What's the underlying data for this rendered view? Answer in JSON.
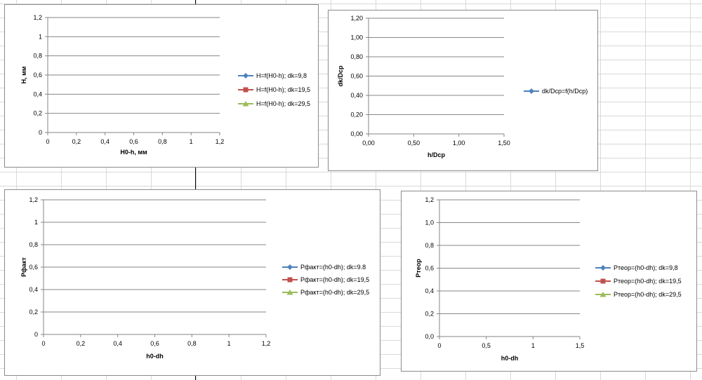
{
  "charts": [
    {
      "chart_data": {
        "type": "line",
        "xlabel": "H0-h, мм",
        "ylabel": "H, мм",
        "xlim": [
          0,
          1.2
        ],
        "ylim": [
          0,
          1.2
        ],
        "x_ticks": [
          "0",
          "0,2",
          "0,4",
          "0,6",
          "0,8",
          "1",
          "1,2"
        ],
        "y_ticks": [
          "0",
          "0,2",
          "0,4",
          "0,6",
          "0,8",
          "1",
          "1,2"
        ],
        "grid": "horizontal",
        "legend_position": "right",
        "series": [
          {
            "name": "H=f(H0-h); dk=9,8",
            "color": "#4f81bd",
            "marker": "diamond",
            "values": []
          },
          {
            "name": "H=f(H0-h); dk=19,5",
            "color": "#c0504d",
            "marker": "square",
            "values": []
          },
          {
            "name": "H=f(H0-h); dk=29,5",
            "color": "#9bbb59",
            "marker": "triangle",
            "values": []
          }
        ]
      }
    },
    {
      "chart_data": {
        "type": "line",
        "xlabel": "h/Dcp",
        "ylabel": "dk/Dcp",
        "xlim": [
          0,
          1.5
        ],
        "ylim": [
          0,
          1.2
        ],
        "x_ticks": [
          "0,00",
          "0,50",
          "1,00",
          "1,50"
        ],
        "y_ticks": [
          "0,00",
          "0,20",
          "0,40",
          "0,60",
          "0,80",
          "1,00",
          "1,20"
        ],
        "grid": "horizontal",
        "legend_position": "right",
        "series": [
          {
            "name": "dk/Dcp=f(h/Dcp)",
            "color": "#4f81bd",
            "marker": "diamond",
            "values": []
          }
        ]
      }
    },
    {
      "chart_data": {
        "type": "line",
        "xlabel": "h0-dh",
        "ylabel": "Рфакт",
        "xlim": [
          0,
          1.2
        ],
        "ylim": [
          0,
          1.2
        ],
        "x_ticks": [
          "0",
          "0,2",
          "0,4",
          "0,6",
          "0,8",
          "1",
          "1,2"
        ],
        "y_ticks": [
          "0",
          "0,2",
          "0,4",
          "0,6",
          "0,8",
          "1",
          "1,2"
        ],
        "grid": "horizontal",
        "legend_position": "right",
        "series": [
          {
            "name": "Рфакт=(h0-dh); dk=9.8",
            "color": "#4f81bd",
            "marker": "diamond",
            "values": []
          },
          {
            "name": "Рфакт=(h0-dh); dk=19,5",
            "color": "#c0504d",
            "marker": "square",
            "values": []
          },
          {
            "name": "Рфакт=(h0-dh); dk=29,5",
            "color": "#9bbb59",
            "marker": "triangle",
            "values": []
          }
        ]
      }
    },
    {
      "chart_data": {
        "type": "line",
        "xlabel": "h0-dh",
        "ylabel": "Ртеор",
        "xlim": [
          0,
          1.5
        ],
        "ylim": [
          0,
          1.2
        ],
        "x_ticks": [
          "0",
          "0,5",
          "1",
          "1,5"
        ],
        "y_ticks": [
          "0,0",
          "0,2",
          "0,4",
          "0,6",
          "0,8",
          "1,0",
          "1,2"
        ],
        "grid": "horizontal",
        "legend_position": "right",
        "series": [
          {
            "name": "Ртеор=(h0-dh); dk=9,8",
            "color": "#4f81bd",
            "marker": "diamond",
            "values": []
          },
          {
            "name": "Ртеор=(h0-dh); dk=19,5",
            "color": "#c0504d",
            "marker": "square",
            "values": []
          },
          {
            "name": "Ртеор=(h0-dh); dk=29,5",
            "color": "#9bbb59",
            "marker": "triangle",
            "values": []
          }
        ]
      }
    }
  ]
}
